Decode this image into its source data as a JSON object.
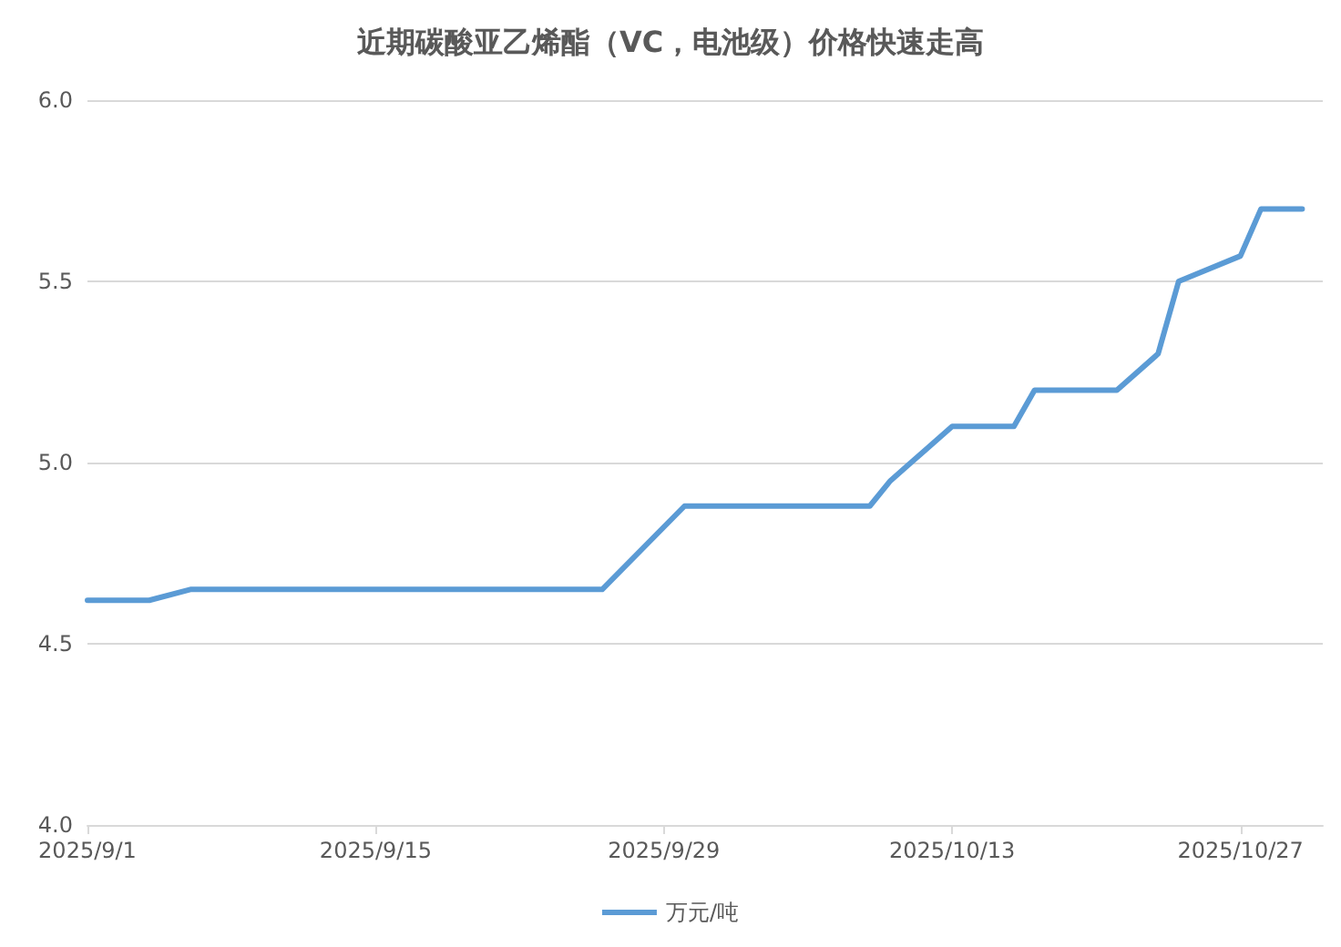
{
  "chart_data": {
    "type": "line",
    "title": "近期碳酸亚乙烯酯（VC，电池级）价格快速走高",
    "x": [
      "2025-09-01",
      "2025-09-04",
      "2025-09-06",
      "2025-09-26",
      "2025-09-30",
      "2025-10-09",
      "2025-10-10",
      "2025-10-13",
      "2025-10-16",
      "2025-10-17",
      "2025-10-21",
      "2025-10-23",
      "2025-10-24",
      "2025-10-27",
      "2025-10-28",
      "2025-10-30"
    ],
    "series": [
      {
        "name": "万元/吨",
        "color": "#5b9bd5",
        "values": [
          4.62,
          4.62,
          4.65,
          4.65,
          4.88,
          4.88,
          4.95,
          5.1,
          5.1,
          5.2,
          5.2,
          5.3,
          5.5,
          5.57,
          5.7,
          5.7
        ]
      }
    ],
    "xlim": [
      "2025-09-01",
      "2025-10-31"
    ],
    "xticks": [
      {
        "value": "2025-09-01",
        "label": "2025/9/1"
      },
      {
        "value": "2025-09-15",
        "label": "2025/9/15"
      },
      {
        "value": "2025-09-29",
        "label": "2025/9/29"
      },
      {
        "value": "2025-10-13",
        "label": "2025/10/13"
      },
      {
        "value": "2025-10-27",
        "label": "2025/10/27"
      }
    ],
    "ylim": [
      4,
      6
    ],
    "yticks": [
      {
        "value": 4,
        "label": "4.0"
      },
      {
        "value": 4.5,
        "label": "4.5"
      },
      {
        "value": 5,
        "label": "5.0"
      },
      {
        "value": 5.5,
        "label": "5.5"
      },
      {
        "value": 6,
        "label": "6.0"
      }
    ],
    "grid": "y",
    "legend": "bottom",
    "marker": "none",
    "line_style": "solid"
  }
}
